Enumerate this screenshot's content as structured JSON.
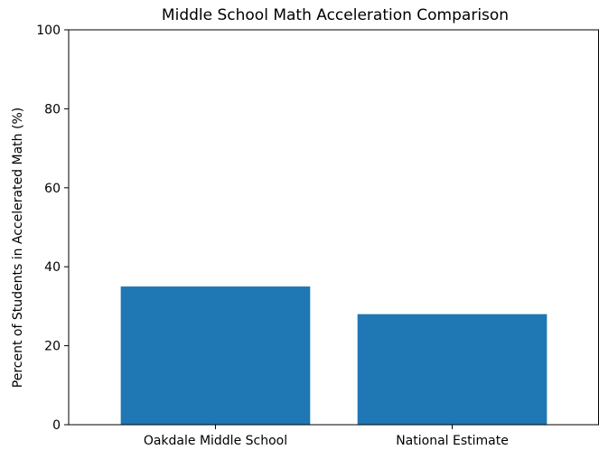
{
  "chart_data": {
    "type": "bar",
    "title": "Middle School Math Acceleration Comparison",
    "xlabel": "",
    "ylabel": "Percent of Students in Accelerated Math (%)",
    "categories": [
      "Oakdale Middle School",
      "National Estimate"
    ],
    "values": [
      35,
      28
    ],
    "ylim": [
      0,
      100
    ],
    "yticks": [
      0,
      20,
      40,
      60,
      80,
      100
    ],
    "grid": false,
    "bar_color": "#1f77b4",
    "axis_color": "#000000"
  }
}
